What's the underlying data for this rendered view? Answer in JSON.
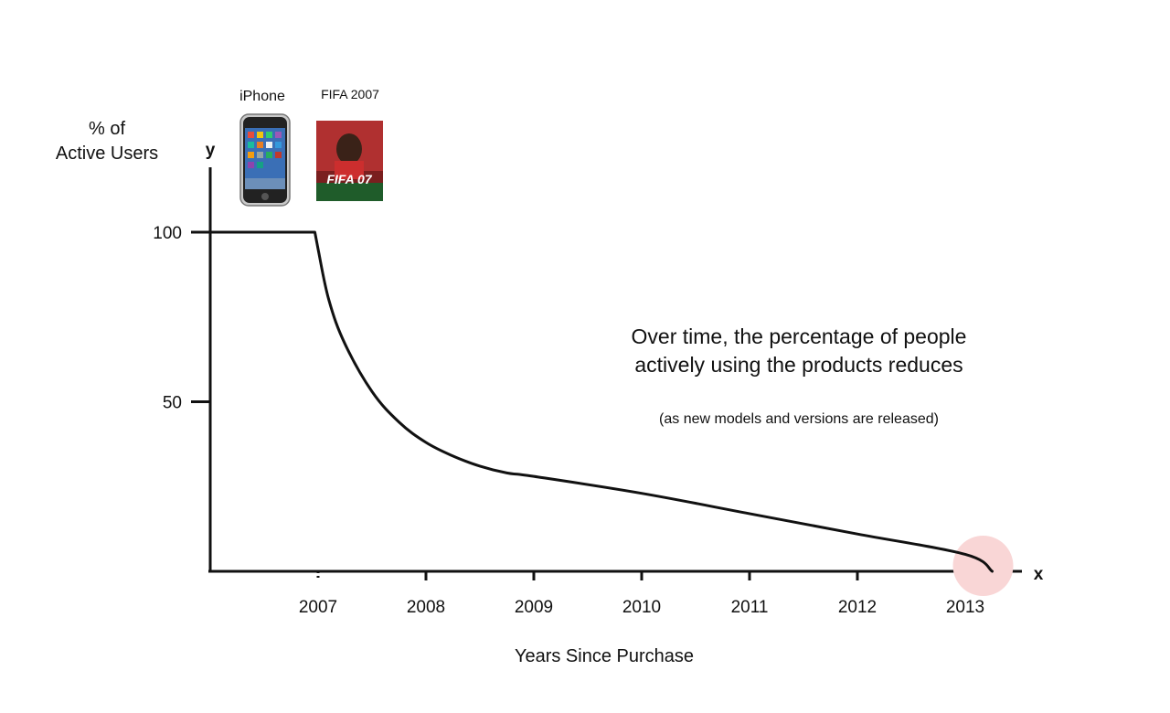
{
  "chart_data": {
    "type": "line",
    "ylabel_lines": [
      "% of",
      "Active Users"
    ],
    "y_axis_letter": "y",
    "x_axis_letter": "x",
    "xlabel": "Years Since Purchase",
    "y_ticks": [
      100,
      50
    ],
    "x_categories": [
      "2007",
      "2008",
      "2009",
      "2010",
      "2011",
      "2012",
      "2013"
    ],
    "ylim": [
      0,
      100
    ],
    "xlim": [
      2006.0,
      2013.4
    ],
    "series": [
      {
        "x": [
          2006.0,
          2006.97,
          2007.0,
          2007.1,
          2007.25,
          2007.5,
          2007.75,
          2008.0,
          2008.25,
          2008.5,
          2008.75,
          2009.0,
          2010.0,
          2011.0,
          2012.0,
          2013.0,
          2013.25
        ],
        "y": [
          100,
          100,
          95,
          80,
          67,
          53,
          44,
          38,
          34,
          31,
          29,
          28,
          23,
          17,
          11,
          5,
          0
        ]
      }
    ],
    "annotation": {
      "lines": [
        "Over time, the percentage of people",
        "actively using the products reduces"
      ],
      "note": "(as new models and versions are released)"
    },
    "products": [
      {
        "label": "iPhone",
        "icon": "iphone-image"
      },
      {
        "label": "FIFA 2007",
        "icon": "fifa-07-cover-image",
        "cover_text": "FIFA 07"
      }
    ],
    "highlight_color": "#f9d6d6",
    "line_color": "#111111"
  }
}
